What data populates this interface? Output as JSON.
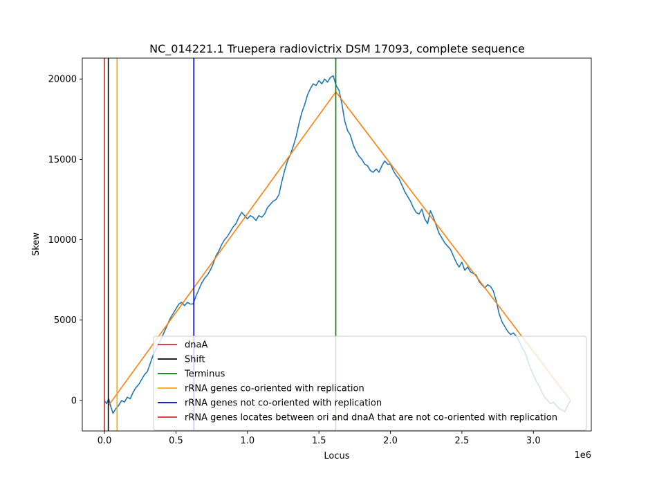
{
  "chart_data": {
    "type": "line",
    "title": "NC_014221.1 Truepera radiovictrix DSM 17093, complete sequence",
    "xlabel": "Locus",
    "ylabel": "Skew",
    "x_offset_label": "1e6",
    "xlim": [
      -155000,
      3405000
    ],
    "ylim": [
      -1900,
      21300
    ],
    "xticks": [
      0,
      0.5,
      1.0,
      1.5,
      2.0,
      2.5,
      3.0
    ],
    "xtick_labels": [
      "0.0",
      "0.5",
      "1.0",
      "1.5",
      "2.0",
      "2.5",
      "3.0"
    ],
    "yticks": [
      0,
      5000,
      10000,
      15000,
      20000
    ],
    "ytick_labels": [
      "0",
      "5000",
      "10000",
      "15000",
      "20000"
    ],
    "grid": false,
    "legend_position": "lower-right",
    "series": [
      {
        "name": "",
        "color": "#1f77b4",
        "kind": "skew",
        "points": [
          [
            0,
            0
          ],
          [
            15000,
            -200
          ],
          [
            30000,
            100
          ],
          [
            45000,
            -400
          ],
          [
            60000,
            -800
          ],
          [
            80000,
            -500
          ],
          [
            100000,
            -300
          ],
          [
            120000,
            0
          ],
          [
            140000,
            -100
          ],
          [
            160000,
            200
          ],
          [
            180000,
            100
          ],
          [
            200000,
            500
          ],
          [
            220000,
            800
          ],
          [
            240000,
            1000
          ],
          [
            260000,
            1300
          ],
          [
            280000,
            1600
          ],
          [
            300000,
            1800
          ],
          [
            320000,
            2300
          ],
          [
            340000,
            2800
          ],
          [
            360000,
            3200
          ],
          [
            380000,
            3500
          ],
          [
            400000,
            3900
          ],
          [
            420000,
            4300
          ],
          [
            440000,
            4700
          ],
          [
            460000,
            5100
          ],
          [
            480000,
            5400
          ],
          [
            500000,
            5700
          ],
          [
            520000,
            6000
          ],
          [
            540000,
            6100
          ],
          [
            560000,
            5900
          ],
          [
            580000,
            6100
          ],
          [
            600000,
            6000
          ],
          [
            620000,
            6000
          ],
          [
            640000,
            6500
          ],
          [
            660000,
            6900
          ],
          [
            680000,
            7300
          ],
          [
            700000,
            7600
          ],
          [
            720000,
            7800
          ],
          [
            740000,
            8100
          ],
          [
            760000,
            8500
          ],
          [
            780000,
            9000
          ],
          [
            800000,
            9300
          ],
          [
            820000,
            9700
          ],
          [
            840000,
            10000
          ],
          [
            860000,
            10200
          ],
          [
            880000,
            10500
          ],
          [
            900000,
            10800
          ],
          [
            920000,
            11000
          ],
          [
            940000,
            11400
          ],
          [
            960000,
            11700
          ],
          [
            980000,
            11500
          ],
          [
            1000000,
            11300
          ],
          [
            1020000,
            11500
          ],
          [
            1040000,
            11400
          ],
          [
            1060000,
            11200
          ],
          [
            1080000,
            11500
          ],
          [
            1100000,
            11400
          ],
          [
            1120000,
            11600
          ],
          [
            1140000,
            12000
          ],
          [
            1160000,
            12200
          ],
          [
            1180000,
            12400
          ],
          [
            1200000,
            12500
          ],
          [
            1220000,
            12800
          ],
          [
            1240000,
            13600
          ],
          [
            1260000,
            14300
          ],
          [
            1280000,
            14900
          ],
          [
            1300000,
            15300
          ],
          [
            1320000,
            15800
          ],
          [
            1340000,
            16400
          ],
          [
            1360000,
            17200
          ],
          [
            1380000,
            17900
          ],
          [
            1400000,
            18400
          ],
          [
            1420000,
            19000
          ],
          [
            1440000,
            19400
          ],
          [
            1460000,
            19700
          ],
          [
            1480000,
            19600
          ],
          [
            1500000,
            19900
          ],
          [
            1520000,
            19700
          ],
          [
            1540000,
            20000
          ],
          [
            1560000,
            19800
          ],
          [
            1580000,
            20100
          ],
          [
            1600000,
            20200
          ],
          [
            1620000,
            19600
          ],
          [
            1640000,
            19300
          ],
          [
            1660000,
            18500
          ],
          [
            1680000,
            17400
          ],
          [
            1700000,
            16800
          ],
          [
            1720000,
            16500
          ],
          [
            1740000,
            15900
          ],
          [
            1760000,
            15500
          ],
          [
            1780000,
            15200
          ],
          [
            1800000,
            15000
          ],
          [
            1820000,
            14700
          ],
          [
            1840000,
            14600
          ],
          [
            1860000,
            14300
          ],
          [
            1880000,
            14200
          ],
          [
            1900000,
            14400
          ],
          [
            1920000,
            14200
          ],
          [
            1940000,
            14600
          ],
          [
            1960000,
            14900
          ],
          [
            1980000,
            14700
          ],
          [
            2000000,
            14700
          ],
          [
            2020000,
            14300
          ],
          [
            2040000,
            14000
          ],
          [
            2060000,
            13800
          ],
          [
            2080000,
            13400
          ],
          [
            2100000,
            13000
          ],
          [
            2120000,
            12700
          ],
          [
            2140000,
            12400
          ],
          [
            2160000,
            12000
          ],
          [
            2180000,
            11700
          ],
          [
            2200000,
            11600
          ],
          [
            2220000,
            11900
          ],
          [
            2240000,
            11300
          ],
          [
            2260000,
            11000
          ],
          [
            2280000,
            11800
          ],
          [
            2300000,
            11400
          ],
          [
            2320000,
            10900
          ],
          [
            2340000,
            10400
          ],
          [
            2360000,
            10100
          ],
          [
            2380000,
            9800
          ],
          [
            2400000,
            9600
          ],
          [
            2420000,
            9400
          ],
          [
            2440000,
            9000
          ],
          [
            2460000,
            8600
          ],
          [
            2480000,
            8300
          ],
          [
            2500000,
            8600
          ],
          [
            2520000,
            8100
          ],
          [
            2540000,
            8300
          ],
          [
            2560000,
            8000
          ],
          [
            2580000,
            7900
          ],
          [
            2600000,
            7800
          ],
          [
            2620000,
            7400
          ],
          [
            2640000,
            7200
          ],
          [
            2660000,
            7000
          ],
          [
            2680000,
            7200
          ],
          [
            2700000,
            7100
          ],
          [
            2720000,
            6800
          ],
          [
            2740000,
            6200
          ],
          [
            2760000,
            5400
          ],
          [
            2780000,
            4900
          ],
          [
            2800000,
            4600
          ],
          [
            2820000,
            4300
          ],
          [
            2840000,
            4100
          ],
          [
            2860000,
            4200
          ],
          [
            2880000,
            4000
          ],
          [
            2900000,
            3700
          ],
          [
            2920000,
            3300
          ],
          [
            2940000,
            3000
          ],
          [
            2960000,
            2500
          ],
          [
            2980000,
            2000
          ],
          [
            3000000,
            1600
          ],
          [
            3020000,
            1200
          ],
          [
            3040000,
            900
          ],
          [
            3060000,
            500
          ],
          [
            3080000,
            200
          ],
          [
            3100000,
            0
          ],
          [
            3120000,
            -200
          ],
          [
            3140000,
            -100
          ],
          [
            3160000,
            -300
          ],
          [
            3180000,
            -500
          ],
          [
            3200000,
            -600
          ],
          [
            3220000,
            -700
          ],
          [
            3240000,
            -300
          ],
          [
            3260000,
            0
          ]
        ]
      },
      {
        "name": "",
        "color": "#ff7f0e",
        "kind": "fit",
        "points": [
          [
            30000,
            -300
          ],
          [
            1618000,
            19200
          ],
          [
            3260000,
            0
          ]
        ]
      }
    ],
    "vlines": [
      {
        "label": "dnaA",
        "x": 0,
        "color": "#d62728",
        "in_legend": true
      },
      {
        "label": "Shift",
        "x": 27000,
        "color": "#000000",
        "in_legend": true
      },
      {
        "label": "Terminus",
        "x": 1618000,
        "color": "#008000",
        "in_legend": true
      },
      {
        "label": "rRNA genes co-oriented with replication",
        "x": 88000,
        "color": "#ffa500",
        "in_legend": true
      },
      {
        "label": "rRNA genes not co-oriented with replication",
        "x": 625000,
        "color": "#0000cd",
        "in_legend": true
      },
      {
        "label": "rRNA genes locates between ori and dnaA that are not co-oriented with replication",
        "x": null,
        "color": "#d62728",
        "in_legend": true
      }
    ]
  }
}
